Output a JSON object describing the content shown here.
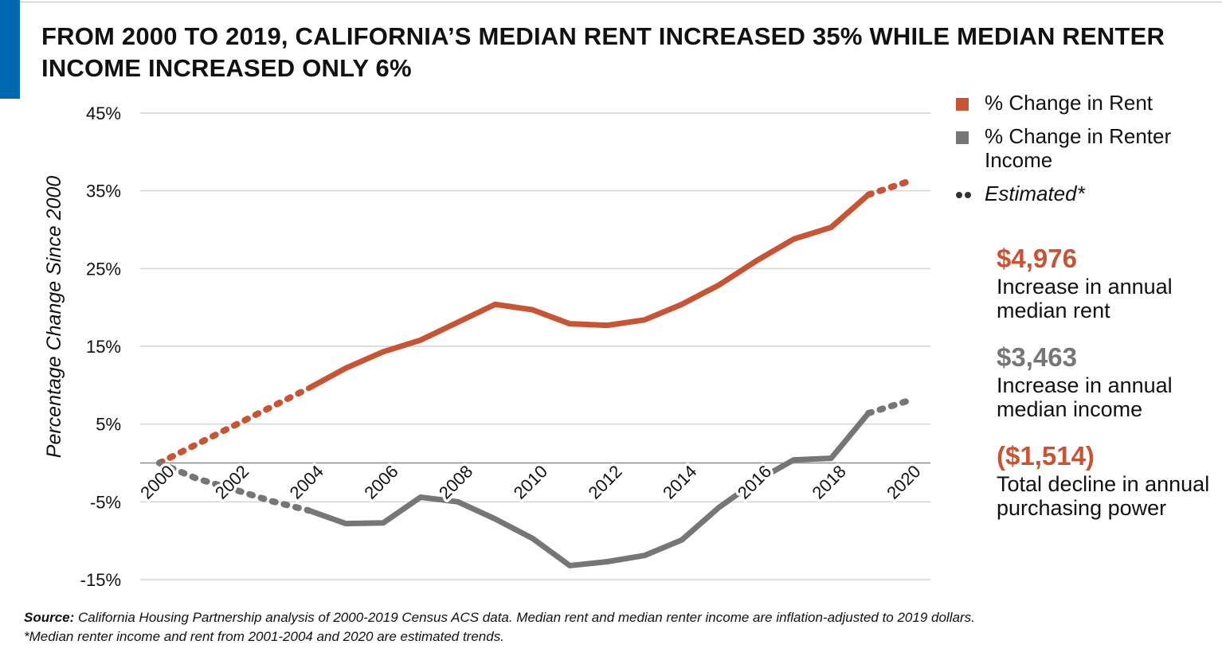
{
  "title": "FROM 2000 TO 2019, CALIFORNIA’S MEDIAN RENT INCREASED 35% WHILE MEDIAN RENTER INCOME INCREASED ONLY 6%",
  "colors": {
    "accent_blue": "#0068b1",
    "rent": "#c75434",
    "income": "#767676",
    "gridline": "#d4d4d4",
    "zero_axis": "#8a8a8a"
  },
  "legend": {
    "items": [
      {
        "label": "% Change in Rent",
        "color": "#c75434",
        "icon": "square-swatch"
      },
      {
        "label": "% Change in Renter Income",
        "color": "#767676",
        "icon": "square-swatch"
      },
      {
        "label": "Estimated*",
        "color": "#333333",
        "icon": "dotted-line"
      }
    ]
  },
  "stats": [
    {
      "value": "$4,976",
      "description": "Increase in annual median rent",
      "color": "#c75434"
    },
    {
      "value": "$3,463",
      "description": "Increase in annual median income",
      "color": "#767676"
    },
    {
      "value": "($1,514)",
      "description": "Total decline in annual purchasing power",
      "color": "#c75434"
    }
  ],
  "footer": {
    "source_label": "Source:",
    "source_text": " California Housing Partnership analysis of 2000-2019 Census ACS data. Median rent and median renter income are inflation-adjusted to 2019 dollars.",
    "note": "*Median renter income and rent from 2001-2004 and 2020 are estimated trends."
  },
  "chart_data": {
    "type": "line",
    "title": "FROM 2000 TO 2019, CALIFORNIA’S MEDIAN RENT INCREASED 35% WHILE MEDIAN RENTER INCOME INCREASED ONLY 6%",
    "xlabel": "",
    "ylabel": "Percentage Change Since 2000",
    "x": [
      2000,
      2001,
      2002,
      2003,
      2004,
      2005,
      2006,
      2007,
      2008,
      2009,
      2010,
      2011,
      2012,
      2013,
      2014,
      2015,
      2016,
      2017,
      2018,
      2019,
      2020
    ],
    "x_ticks": [
      "2000",
      "2002",
      "2004",
      "2006",
      "2008",
      "2010",
      "2012",
      "2014",
      "2016",
      "2018",
      "2020"
    ],
    "xlim": [
      2000,
      2020
    ],
    "ylim": [
      -15,
      45
    ],
    "y_ticks": [
      45,
      35,
      25,
      15,
      5,
      -5,
      -15
    ],
    "y_tick_labels": [
      "45%",
      "35%",
      "25%",
      "15%",
      "5%",
      "-5%",
      "-15%"
    ],
    "grid": true,
    "legend_position": "right",
    "estimated_years": "2001-2004 and 2020 (dotted)",
    "series": [
      {
        "name": "% Change in Rent",
        "color": "#c75434",
        "values": [
          0,
          2.4,
          4.8,
          7.2,
          9.6,
          12.2,
          14.3,
          15.8,
          18.1,
          20.4,
          19.7,
          17.9,
          17.7,
          18.4,
          20.4,
          22.9,
          26.0,
          28.8,
          30.3,
          34.5,
          36.1
        ],
        "estimated": [
          true,
          true,
          true,
          true,
          true,
          false,
          false,
          false,
          false,
          false,
          false,
          false,
          false,
          false,
          false,
          false,
          false,
          false,
          false,
          false,
          true
        ]
      },
      {
        "name": "% Change in Renter Income",
        "color": "#767676",
        "values": [
          0,
          -2.0,
          -3.4,
          -4.9,
          -6.1,
          -7.8,
          -7.7,
          -4.4,
          -5.0,
          -7.2,
          -9.7,
          -13.2,
          -12.7,
          -11.9,
          -9.9,
          -5.7,
          -2.3,
          0.4,
          0.6,
          6.4,
          7.9
        ],
        "estimated": [
          true,
          true,
          true,
          true,
          true,
          false,
          false,
          false,
          false,
          false,
          false,
          false,
          false,
          false,
          false,
          false,
          false,
          false,
          false,
          false,
          true
        ]
      }
    ]
  }
}
